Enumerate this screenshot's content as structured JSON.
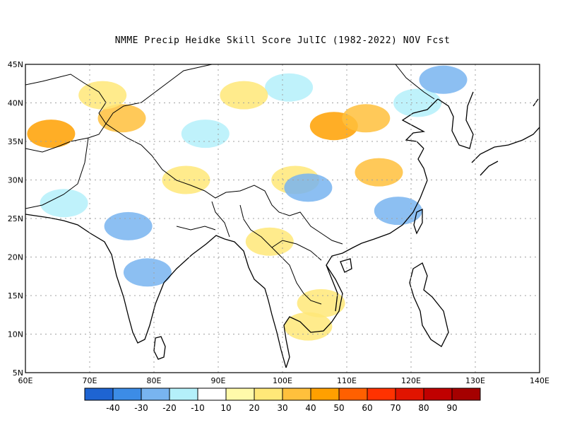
{
  "title": "NMME Precip Heidke Skill Score JulIC (1982-2022) NOV Fcst",
  "map": {
    "lon_range": [
      60,
      140
    ],
    "lat_range": [
      5,
      45
    ],
    "lon_labels": [
      "60E",
      "70E",
      "80E",
      "90E",
      "100E",
      "110E",
      "120E",
      "130E",
      "140E"
    ],
    "lat_labels": [
      "5N",
      "10N",
      "15N",
      "20N",
      "25N",
      "30N",
      "35N",
      "40N",
      "45N"
    ]
  },
  "colorbar": {
    "colors": [
      "#1e64d2",
      "#3c8ce6",
      "#78b4f0",
      "#b4f0fa",
      "#ffffff",
      "#fffaaa",
      "#ffe878",
      "#ffc03c",
      "#ffa000",
      "#ff6000",
      "#ff3200",
      "#e11400",
      "#c00000",
      "#a50000"
    ],
    "labels": [
      "-40",
      "-30",
      "-20",
      "-10",
      "10",
      "20",
      "30",
      "40",
      "50",
      "60",
      "70",
      "80",
      "90"
    ]
  },
  "patches": [
    {
      "lon": 75,
      "lat": 38,
      "level": "30"
    },
    {
      "lon": 64,
      "lat": 36,
      "level": "40"
    },
    {
      "lon": 72,
      "lat": 41,
      "level": "20"
    },
    {
      "lon": 108,
      "lat": 37,
      "level": "40"
    },
    {
      "lon": 113,
      "lat": 38,
      "level": "30"
    },
    {
      "lon": 115,
      "lat": 31,
      "level": "30"
    },
    {
      "lon": 102,
      "lat": 30,
      "level": "20"
    },
    {
      "lon": 98,
      "lat": 22,
      "level": "20"
    },
    {
      "lon": 106,
      "lat": 14,
      "level": "20"
    },
    {
      "lon": 104,
      "lat": 11,
      "level": "20"
    },
    {
      "lon": 85,
      "lat": 30,
      "level": "20"
    },
    {
      "lon": 104,
      "lat": 29,
      "level": "-20"
    },
    {
      "lon": 76,
      "lat": 24,
      "level": "-20"
    },
    {
      "lon": 79,
      "lat": 18,
      "level": "-20"
    },
    {
      "lon": 88,
      "lat": 36,
      "level": "-10"
    },
    {
      "lon": 101,
      "lat": 42,
      "level": "-10"
    },
    {
      "lon": 66,
      "lat": 27,
      "level": "-10"
    },
    {
      "lon": 121,
      "lat": 40,
      "level": "-10"
    },
    {
      "lon": 118,
      "lat": 26,
      "level": "-20"
    },
    {
      "lon": 94,
      "lat": 41,
      "level": "20"
    },
    {
      "lon": 125,
      "lat": 43,
      "level": "-20"
    }
  ]
}
